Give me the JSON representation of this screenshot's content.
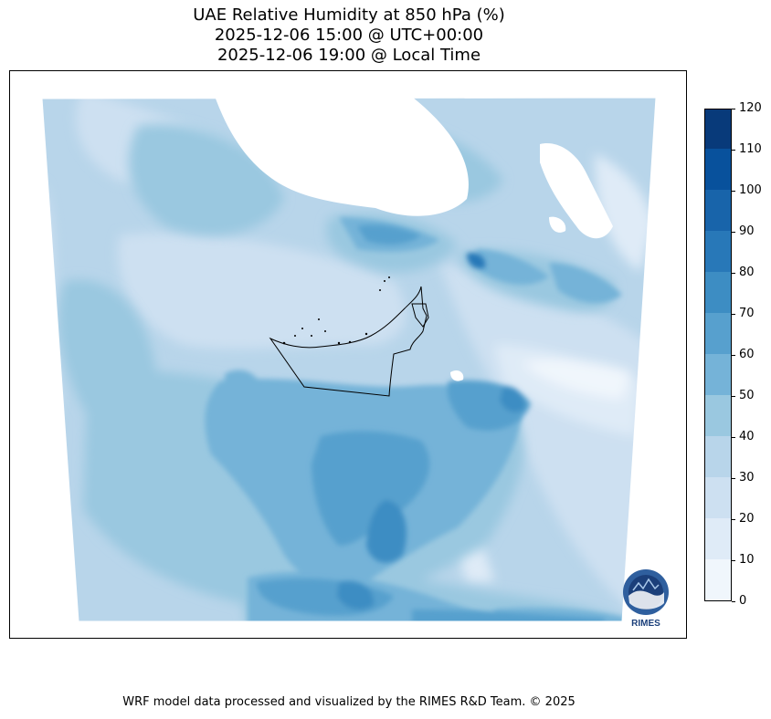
{
  "title": {
    "line1": "UAE Relative Humidity at 850 hPa (%)",
    "line2": "2025-12-06 15:00 @ UTC+00:00",
    "line3": "2025-12-06 19:00 @ Local Time"
  },
  "colorbar": {
    "ticks": [
      "0",
      "10",
      "20",
      "30",
      "40",
      "50",
      "60",
      "70",
      "80",
      "90",
      "100",
      "110",
      "120"
    ],
    "levels": [
      0,
      10,
      20,
      30,
      40,
      50,
      60,
      70,
      80,
      90,
      100,
      110,
      120
    ],
    "colors": [
      "#f0f6fc",
      "#dfebf7",
      "#cde0f1",
      "#b8d5ea",
      "#9ac8e0",
      "#75b3d8",
      "#57a0ce",
      "#3d8dc3",
      "#2878b8",
      "#1864aa",
      "#08519c",
      "#083a7a"
    ]
  },
  "logo": {
    "text": "RIMES"
  },
  "footer": {
    "credit": "WRF model data processed and visualized by the RIMES R&D Team. © 2025"
  }
}
